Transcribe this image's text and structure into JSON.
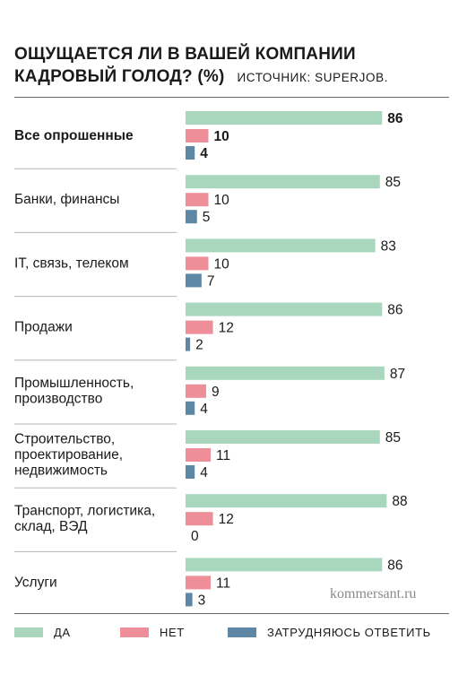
{
  "header": {
    "title_line1": "ОЩУЩАЕТСЯ ЛИ В ВАШЕЙ КОМПАНИИ",
    "title_line2": "КАДРОВЫЙ ГОЛОД? (%)",
    "source": "ИСТОЧНИК: SUPERJOB."
  },
  "watermark": "kommersant.ru",
  "colors": {
    "yes": "#a8d7bd",
    "no": "#ee8e98",
    "unsure": "#5e86a5"
  },
  "legend": [
    {
      "label": "ДА",
      "color": "#a8d7bd"
    },
    {
      "label": "НЕТ",
      "color": "#ee8e98"
    },
    {
      "label": "ЗАТРУДНЯЮСЬ ОТВЕТИТЬ",
      "color": "#5e86a5"
    }
  ],
  "chart_data": {
    "type": "bar",
    "orientation": "horizontal",
    "title": "ОЩУЩАЕТСЯ ЛИ В ВАШЕЙ КОМПАНИИ КАДРОВЫЙ ГОЛОД? (%)",
    "source": "ИСТОЧНИК: SUPERJOB.",
    "categories": [
      [
        "Все опрошенные"
      ],
      [
        "Банки, финансы"
      ],
      [
        "IT, связь, телеком"
      ],
      [
        "Продажи"
      ],
      [
        "Промышленность,",
        "производство"
      ],
      [
        "Строительство,",
        "проектирование,",
        "недвижимость"
      ],
      [
        "Транспорт, логистика,",
        "склад, ВЭД"
      ],
      [
        "Услуги"
      ]
    ],
    "emphasis_index": 0,
    "series": [
      {
        "name": "ДА",
        "color": "#a8d7bd",
        "values": [
          86,
          85,
          83,
          86,
          87,
          85,
          88,
          86
        ]
      },
      {
        "name": "НЕТ",
        "color": "#ee8e98",
        "values": [
          10,
          10,
          10,
          12,
          9,
          11,
          12,
          11
        ]
      },
      {
        "name": "ЗАТРУДНЯЮСЬ ОТВЕТИТЬ",
        "color": "#5e86a5",
        "values": [
          4,
          5,
          7,
          2,
          4,
          4,
          0,
          3
        ]
      }
    ],
    "xlim": [
      0,
      100
    ],
    "grid": false,
    "legend_position": "bottom"
  }
}
